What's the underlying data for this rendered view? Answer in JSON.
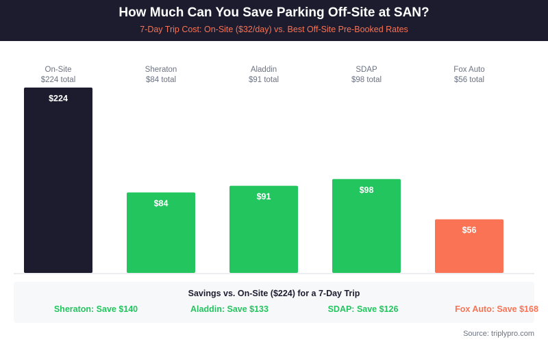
{
  "chart_data": {
    "type": "bar",
    "title": "How Much Can You Save Parking Off-Site at SAN?",
    "subtitle": "7-Day Trip Cost: On-Site ($32/day) vs. Best Off-Site Pre-Booked Rates",
    "categories": [
      "On-Site",
      "Sheraton",
      "Aladdin",
      "SDAP",
      "Fox Auto"
    ],
    "category_totals": [
      "$224 total",
      "$84 total",
      "$91 total",
      "$98 total",
      "$56 total"
    ],
    "values": [
      224,
      84,
      91,
      98,
      56
    ],
    "data_labels": [
      "$224",
      "$84",
      "$91",
      "$98",
      "$56"
    ],
    "colors": [
      "#1c1c2e",
      "#22c55e",
      "#22c55e",
      "#22c55e",
      "#f97354"
    ],
    "grid": false
  },
  "savings": {
    "title": "Savings vs. On-Site ($224) for a 7-Day Trip",
    "items": [
      {
        "text": "Sheraton: Save $140",
        "color": "#22c55e"
      },
      {
        "text": "Aladdin: Save $133",
        "color": "#22c55e"
      },
      {
        "text": "SDAP: Save $126",
        "color": "#22c55e"
      },
      {
        "text": "Fox Auto: Save $168",
        "color": "#f97354"
      }
    ]
  },
  "source": "Source: triplypro.com"
}
